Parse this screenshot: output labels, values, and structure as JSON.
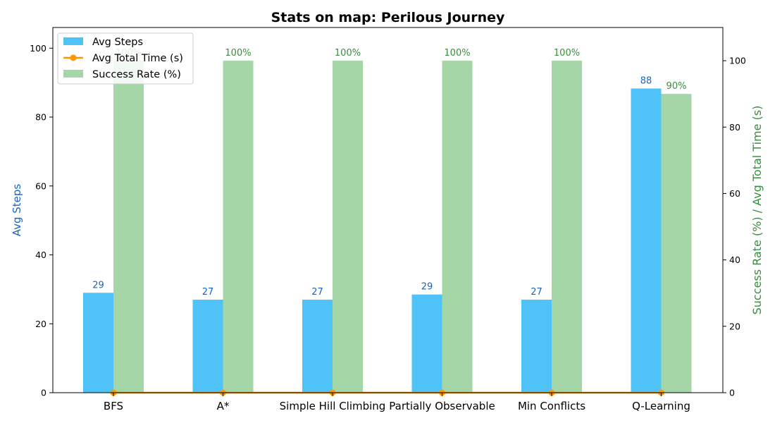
{
  "chart_data": {
    "type": "bar",
    "title": "Stats on map: Perilous Journey",
    "categories": [
      "BFS",
      "A*",
      "Simple Hill Climbing",
      "Partially Observable",
      "Min Conflicts",
      "Q-Learning"
    ],
    "series": [
      {
        "name": "Avg Steps",
        "axis": "left",
        "kind": "bar",
        "values": [
          29,
          27,
          27,
          28.5,
          27,
          88.3
        ],
        "labels": [
          "29",
          "27",
          "27",
          "29",
          "27",
          "88"
        ],
        "color": "#4fc3f7",
        "label_color": "#1565c0"
      },
      {
        "name": "Avg Total Time (s)",
        "axis": "right",
        "kind": "line",
        "values": [
          0,
          0,
          0,
          0,
          0,
          0
        ],
        "color": "#ff9800"
      },
      {
        "name": "Success Rate (%)",
        "axis": "right",
        "kind": "bar",
        "values": [
          100,
          100,
          100,
          100,
          100,
          90
        ],
        "labels": [
          "100%",
          "100%",
          "100%",
          "100%",
          "100%",
          "90%"
        ],
        "color": "#a5d6a7",
        "label_color": "#388e3c"
      }
    ],
    "ylabel_left": "Avg Steps",
    "ylabel_right": "Success Rate (%) / Avg Total Time (s)",
    "ylabel_left_color": "#1565c0",
    "ylabel_right_color": "#388e3c",
    "ylim_left": [
      0,
      106
    ],
    "ylim_right": [
      0,
      110
    ],
    "yticks_left": [
      "0",
      "20",
      "40",
      "60",
      "80",
      "100"
    ],
    "yticks_right": [
      "0",
      "20",
      "40",
      "60",
      "80",
      "100"
    ],
    "legend_position": "top-left",
    "grid": false
  }
}
